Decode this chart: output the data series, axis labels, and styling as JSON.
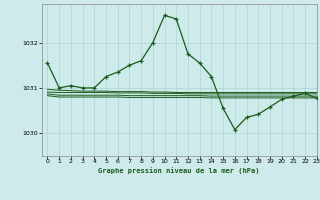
{
  "title": "Graphe pression niveau de la mer (hPa)",
  "background_color": "#ceeaea",
  "grid_color": "#aed4d4",
  "line_color": "#1a5c1a",
  "xlim": [
    -0.5,
    23
  ],
  "ylim": [
    1029.5,
    1032.85
  ],
  "yticks": [
    1030,
    1031,
    1032
  ],
  "xticks": [
    0,
    1,
    2,
    3,
    4,
    5,
    6,
    7,
    8,
    9,
    10,
    11,
    12,
    13,
    14,
    15,
    16,
    17,
    18,
    19,
    20,
    21,
    22,
    23
  ],
  "series_main": [
    1031.55,
    1031.0,
    1031.05,
    1031.0,
    1031.0,
    1031.25,
    1031.35,
    1031.5,
    1031.6,
    1032.0,
    1032.6,
    1032.52,
    1031.75,
    1031.55,
    1031.25,
    1030.55,
    1030.08,
    1030.35,
    1030.42,
    1030.58,
    1030.75,
    1030.82,
    1030.88,
    1030.77
  ],
  "series_flat1": [
    1030.87,
    1030.84,
    1030.84,
    1030.84,
    1030.84,
    1030.84,
    1030.84,
    1030.83,
    1030.83,
    1030.83,
    1030.83,
    1030.83,
    1030.83,
    1030.83,
    1030.82,
    1030.82,
    1030.82,
    1030.82,
    1030.82,
    1030.82,
    1030.82,
    1030.82,
    1030.82,
    1030.82
  ],
  "series_flat2": [
    1030.83,
    1030.8,
    1030.8,
    1030.8,
    1030.8,
    1030.8,
    1030.8,
    1030.79,
    1030.79,
    1030.79,
    1030.79,
    1030.79,
    1030.79,
    1030.79,
    1030.78,
    1030.78,
    1030.78,
    1030.78,
    1030.78,
    1030.78,
    1030.78,
    1030.78,
    1030.78,
    1030.78
  ],
  "series_flat3": [
    1030.91,
    1030.9,
    1030.9,
    1030.9,
    1030.9,
    1030.9,
    1030.89,
    1030.89,
    1030.89,
    1030.88,
    1030.88,
    1030.88,
    1030.87,
    1030.87,
    1030.87,
    1030.87,
    1030.87,
    1030.87,
    1030.87,
    1030.87,
    1030.87,
    1030.87,
    1030.87,
    1030.87
  ],
  "series_flat4": [
    1030.97,
    1030.95,
    1030.94,
    1030.93,
    1030.93,
    1030.93,
    1030.92,
    1030.92,
    1030.92,
    1030.91,
    1030.91,
    1030.9,
    1030.9,
    1030.9,
    1030.9,
    1030.9,
    1030.9,
    1030.9,
    1030.9,
    1030.9,
    1030.9,
    1030.9,
    1030.9,
    1030.9
  ]
}
